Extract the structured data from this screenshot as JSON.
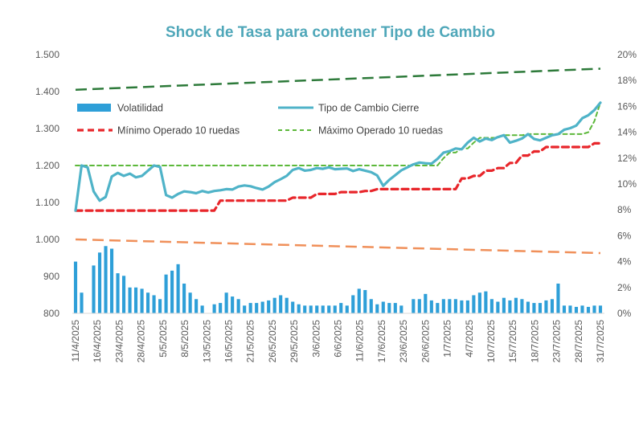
{
  "chart_data": {
    "type": "bar+line",
    "title": "Shock de Tasa para contener Tipo de Cambio",
    "y_left": {
      "ticks": [
        "800",
        "900",
        "1.000",
        "1.100",
        "1.200",
        "1.300",
        "1.400",
        "1.500"
      ],
      "range": [
        800,
        1500
      ]
    },
    "y_right": {
      "ticks": [
        "0%",
        "2%",
        "4%",
        "6%",
        "8%",
        "10%",
        "12%",
        "14%",
        "16%",
        "18%",
        "20%"
      ],
      "range": [
        0,
        20
      ]
    },
    "x_ticks": [
      "11/4/2025",
      "16/4/2025",
      "23/4/2025",
      "28/4/2025",
      "5/5/2025",
      "8/5/2025",
      "13/5/2025",
      "16/5/2025",
      "21/5/2025",
      "26/5/2025",
      "29/5/2025",
      "3/6/2025",
      "6/6/2025",
      "11/6/2025",
      "17/6/2025",
      "23/6/2025",
      "26/6/2025",
      "1/7/2025",
      "4/7/2025",
      "10/7/2025",
      "15/7/2025",
      "18/7/2025",
      "23/7/2025",
      "28/7/2025",
      "31/7/2025"
    ],
    "legend": [
      {
        "key": "vol",
        "label": "Volatilidad"
      },
      {
        "key": "tc",
        "label": "Tipo de Cambio Cierre"
      },
      {
        "key": "min",
        "label": "Mínimo Operado 10 ruedas"
      },
      {
        "key": "max",
        "label": "Máximo Operado 10 ruedas"
      }
    ],
    "colors": {
      "title": "#4fa7b9",
      "volatilidad": "#2e9fd8",
      "tipo_cambio": "#4fb3c8",
      "minimo": "#e8262b",
      "maximo": "#5cb83a",
      "banda_superior": "#2d7a3a",
      "banda_inferior": "#f0905a"
    },
    "series": {
      "tipo_cambio": [
        1078,
        1200,
        1195,
        1130,
        1105,
        1115,
        1170,
        1180,
        1172,
        1178,
        1168,
        1172,
        1186,
        1200,
        1196,
        1120,
        1113,
        1123,
        1130,
        1128,
        1125,
        1131,
        1127,
        1131,
        1133,
        1136,
        1135,
        1143,
        1146,
        1144,
        1139,
        1135,
        1143,
        1155,
        1163,
        1172,
        1188,
        1193,
        1186,
        1188,
        1193,
        1191,
        1195,
        1190,
        1191,
        1192,
        1185,
        1190,
        1186,
        1182,
        1173,
        1145,
        1161,
        1174,
        1187,
        1195,
        1203,
        1208,
        1206,
        1205,
        1218,
        1235,
        1239,
        1246,
        1244,
        1262,
        1275,
        1265,
        1273,
        1269,
        1277,
        1282,
        1262,
        1267,
        1273,
        1285,
        1272,
        1268,
        1275,
        1282,
        1285,
        1297,
        1301,
        1308,
        1328,
        1336,
        1350,
        1370
      ],
      "minimo": [
        1078,
        1078,
        1078,
        1078,
        1078,
        1078,
        1078,
        1078,
        1078,
        1078,
        1078,
        1078,
        1078,
        1078,
        1078,
        1078,
        1078,
        1078,
        1078,
        1078,
        1078,
        1078,
        1078,
        1078,
        1105,
        1105,
        1105,
        1105,
        1105,
        1105,
        1105,
        1105,
        1105,
        1105,
        1105,
        1105,
        1113,
        1113,
        1113,
        1113,
        1123,
        1123,
        1123,
        1123,
        1128,
        1128,
        1128,
        1128,
        1131,
        1131,
        1136,
        1136,
        1136,
        1136,
        1136,
        1136,
        1136,
        1136,
        1136,
        1136,
        1136,
        1136,
        1136,
        1136,
        1165,
        1165,
        1172,
        1172,
        1186,
        1186,
        1193,
        1193,
        1207,
        1207,
        1227,
        1227,
        1238,
        1238,
        1250,
        1250,
        1250,
        1250,
        1250,
        1250,
        1250,
        1250,
        1260,
        1260
      ],
      "maximo": [
        1200,
        1200,
        1200,
        1200,
        1200,
        1200,
        1200,
        1200,
        1200,
        1200,
        1200,
        1200,
        1200,
        1200,
        1200,
        1200,
        1200,
        1200,
        1200,
        1200,
        1200,
        1200,
        1200,
        1200,
        1200,
        1200,
        1200,
        1200,
        1200,
        1200,
        1200,
        1200,
        1200,
        1200,
        1200,
        1200,
        1200,
        1200,
        1200,
        1200,
        1200,
        1200,
        1200,
        1200,
        1200,
        1200,
        1200,
        1200,
        1200,
        1200,
        1200,
        1200,
        1200,
        1200,
        1200,
        1200,
        1200,
        1200,
        1200,
        1200,
        1200,
        1220,
        1235,
        1235,
        1246,
        1246,
        1262,
        1275,
        1275,
        1275,
        1275,
        1282,
        1282,
        1282,
        1282,
        1285,
        1285,
        1285,
        1285,
        1285,
        1285,
        1285,
        1285,
        1285,
        1285,
        1290,
        1320,
        1370
      ],
      "banda_superior": [
        1405,
        1462
      ],
      "banda_inferior": [
        1000,
        963
      ],
      "volatilidad": [
        4.0,
        1.6,
        0.0,
        3.7,
        4.7,
        5.2,
        5.0,
        3.1,
        2.9,
        2.0,
        2.0,
        1.9,
        1.6,
        1.4,
        1.1,
        3.0,
        3.3,
        3.8,
        2.3,
        1.6,
        1.1,
        0.6,
        0.0,
        0.7,
        0.8,
        1.6,
        1.3,
        1.1,
        0.6,
        0.8,
        0.8,
        0.9,
        1.0,
        1.2,
        1.4,
        1.2,
        0.9,
        0.7,
        0.6,
        0.6,
        0.6,
        0.6,
        0.6,
        0.6,
        0.8,
        0.6,
        1.4,
        1.9,
        1.8,
        1.1,
        0.7,
        0.9,
        0.8,
        0.8,
        0.6,
        0.0,
        1.1,
        1.1,
        1.5,
        1.0,
        0.8,
        1.1,
        1.1,
        1.1,
        1.0,
        1.0,
        1.4,
        1.6,
        1.7,
        1.1,
        0.9,
        1.2,
        1.0,
        1.2,
        1.1,
        0.9,
        0.8,
        0.8,
        1.0,
        1.1,
        2.3,
        0.6,
        0.6,
        0.5,
        0.6,
        0.5,
        0.6,
        0.6
      ]
    }
  }
}
